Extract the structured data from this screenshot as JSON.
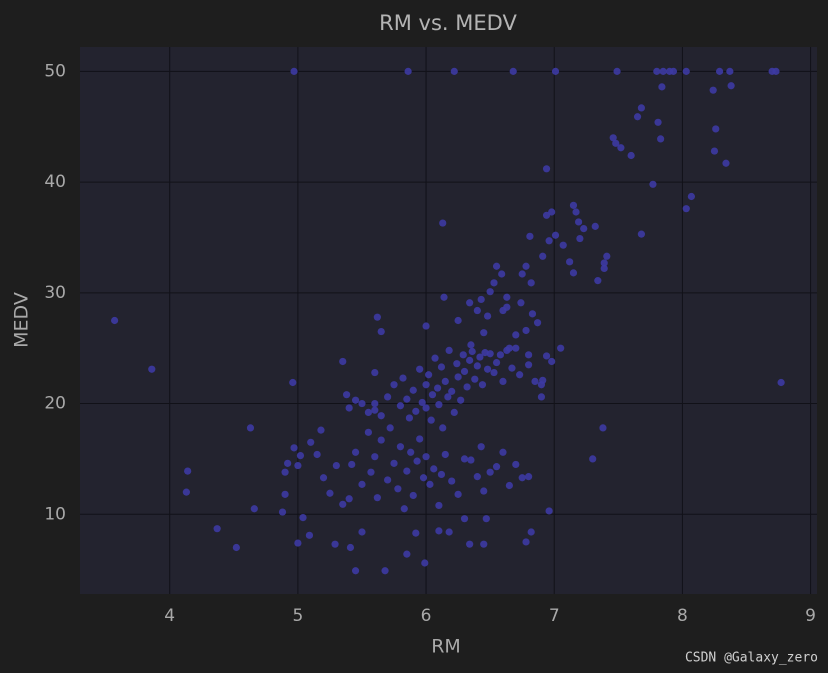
{
  "chart_data": {
    "type": "scatter",
    "title": "RM vs. MEDV",
    "x_label": "RM",
    "y_label": "MEDV",
    "color": "#3d3aa3",
    "grid": true,
    "xlim": [
      3.3,
      9.05
    ],
    "ylim": [
      2.8,
      52.2
    ],
    "xticks": [
      4,
      5,
      6,
      7,
      8,
      9
    ],
    "yticks": [
      10,
      20,
      30,
      40,
      50
    ],
    "x": [
      3.57,
      3.86,
      4.14,
      4.13,
      4.37,
      4.52,
      4.63,
      4.66,
      4.97,
      4.96,
      5.86,
      6.22,
      6.68,
      7.01,
      7.49,
      7.8,
      7.85,
      7.9,
      7.93,
      8.03,
      8.29,
      8.37,
      8.7,
      8.73,
      8.77,
      6.13,
      7.46,
      7.48,
      7.52,
      7.6,
      7.65,
      7.68,
      7.81,
      7.83,
      7.84,
      7.77,
      7.68,
      8.24,
      8.38,
      8.26,
      8.25,
      8.34,
      8.03,
      8.07,
      6.94,
      6.94,
      6.98,
      7.15,
      7.17,
      7.19,
      7.23,
      7.32,
      7.2,
      7.01,
      6.81,
      6.96,
      7.07,
      7.41,
      7.39,
      7.39,
      7.34,
      7.15,
      7.12,
      6.91,
      6.78,
      6.75,
      6.82,
      6.55,
      6.59,
      6.53,
      6.63,
      6.74,
      6.43,
      6.14,
      6.34,
      6.63,
      6.48,
      6.83,
      6.87,
      7.05,
      6.94,
      6.98,
      6.91,
      7.38,
      7.3,
      6.96,
      5.45,
      5.68,
      5.99,
      5.85,
      5.41,
      5.29,
      5.0,
      5.04,
      5.09,
      6.34,
      6.45,
      6.78,
      6.82,
      5.5,
      5.6,
      5.65,
      5.7,
      5.75,
      5.8,
      5.82,
      5.85,
      5.87,
      5.9,
      5.92,
      5.95,
      5.97,
      6.0,
      6.0,
      6.02,
      6.04,
      6.05,
      6.07,
      6.09,
      6.1,
      6.12,
      6.13,
      6.15,
      6.17,
      6.18,
      6.2,
      6.22,
      6.24,
      6.25,
      6.27,
      6.29,
      6.3,
      6.32,
      6.34,
      6.36,
      6.38,
      6.4,
      6.42,
      6.44,
      6.46,
      6.48,
      6.5,
      6.53,
      6.55,
      6.58,
      6.6,
      6.63,
      6.67,
      6.7,
      6.73,
      6.78,
      6.8,
      6.85,
      5.1,
      5.2,
      5.25,
      5.3,
      5.35,
      5.4,
      5.42,
      5.45,
      5.5,
      5.55,
      5.57,
      5.6,
      5.62,
      5.65,
      5.7,
      5.72,
      5.75,
      5.78,
      5.8,
      5.83,
      5.85,
      5.88,
      5.9,
      5.93,
      5.95,
      5.98,
      6.0,
      6.03,
      6.06,
      6.1,
      6.12,
      6.15,
      6.18,
      6.2,
      6.25,
      6.3,
      6.35,
      6.4,
      6.43,
      6.45,
      6.47,
      6.5,
      6.55,
      6.6,
      6.65,
      6.7,
      6.75,
      6.8,
      6.3,
      6.1,
      5.92,
      5.5,
      5.4,
      4.9,
      4.92,
      4.97,
      5.0,
      5.02,
      4.88,
      4.9,
      5.15,
      5.18,
      5.35,
      5.45,
      5.38,
      5.6,
      5.65,
      5.62,
      5.6,
      5.55,
      6.0,
      6.25,
      6.45,
      6.5,
      6.6,
      6.65,
      6.7,
      6.4,
      6.35,
      6.8,
      6.9,
      6.9
    ],
    "values": [
      27.5,
      23.1,
      13.9,
      12.0,
      8.7,
      7.0,
      17.8,
      10.5,
      50,
      21.9,
      50,
      50,
      50,
      50,
      50,
      50,
      50,
      50,
      50,
      50,
      50,
      50,
      50,
      50,
      21.9,
      36.3,
      44.0,
      43.5,
      43.1,
      42.4,
      45.9,
      46.7,
      45.4,
      43.9,
      48.6,
      39.8,
      35.3,
      48.3,
      48.7,
      44.8,
      42.8,
      41.7,
      37.6,
      38.7,
      41.2,
      37.0,
      37.3,
      37.9,
      37.3,
      36.4,
      35.8,
      36.0,
      34.9,
      35.2,
      35.1,
      34.7,
      34.3,
      33.3,
      32.7,
      32.2,
      31.1,
      31.8,
      32.8,
      33.3,
      32.4,
      31.7,
      30.9,
      32.4,
      31.7,
      30.9,
      29.6,
      29.1,
      29.4,
      29.6,
      29.1,
      28.7,
      27.9,
      28.1,
      27.3,
      25.0,
      24.3,
      23.8,
      22.1,
      17.8,
      15.0,
      10.3,
      4.9,
      4.9,
      5.6,
      6.4,
      7.0,
      7.3,
      7.4,
      9.7,
      8.1,
      7.3,
      7.3,
      7.5,
      8.4,
      20.0,
      19.4,
      18.9,
      20.6,
      21.7,
      19.8,
      22.3,
      20.4,
      18.7,
      21.2,
      19.3,
      23.1,
      20.1,
      21.7,
      19.6,
      22.6,
      18.5,
      20.8,
      24.1,
      21.4,
      19.9,
      23.3,
      17.8,
      22.0,
      20.6,
      24.8,
      21.1,
      19.2,
      23.6,
      22.4,
      20.3,
      24.4,
      22.9,
      21.5,
      23.9,
      24.7,
      22.2,
      23.4,
      24.2,
      21.7,
      24.6,
      23.1,
      24.5,
      22.8,
      23.7,
      24.4,
      22.0,
      24.8,
      23.2,
      25.0,
      22.6,
      26.6,
      24.4,
      22.0,
      16.5,
      13.3,
      11.9,
      14.4,
      10.9,
      19.6,
      14.5,
      15.6,
      12.7,
      17.4,
      13.8,
      15.2,
      11.5,
      16.7,
      13.1,
      17.8,
      14.6,
      12.3,
      16.1,
      10.5,
      13.9,
      15.6,
      11.7,
      14.8,
      16.8,
      13.3,
      15.2,
      12.7,
      14.1,
      10.8,
      13.6,
      15.4,
      8.4,
      13.0,
      11.8,
      15.0,
      14.9,
      13.4,
      16.1,
      12.1,
      9.6,
      13.8,
      14.3,
      15.6,
      12.6,
      14.5,
      13.3,
      13.4,
      9.6,
      8.5,
      8.3,
      8.4,
      11.4,
      11.8,
      14.6,
      16.0,
      14.4,
      15.3,
      10.2,
      13.8,
      15.4,
      17.6,
      23.8,
      20.3,
      20.8,
      22.8,
      26.5,
      27.8,
      20.0,
      19.2,
      27.0,
      27.5,
      26.4,
      30.1,
      28.4,
      25.0,
      26.2,
      28.4,
      25.3,
      23.5,
      20.6,
      21.7
    ]
  },
  "watermark": "CSDN @Galaxy_zero"
}
